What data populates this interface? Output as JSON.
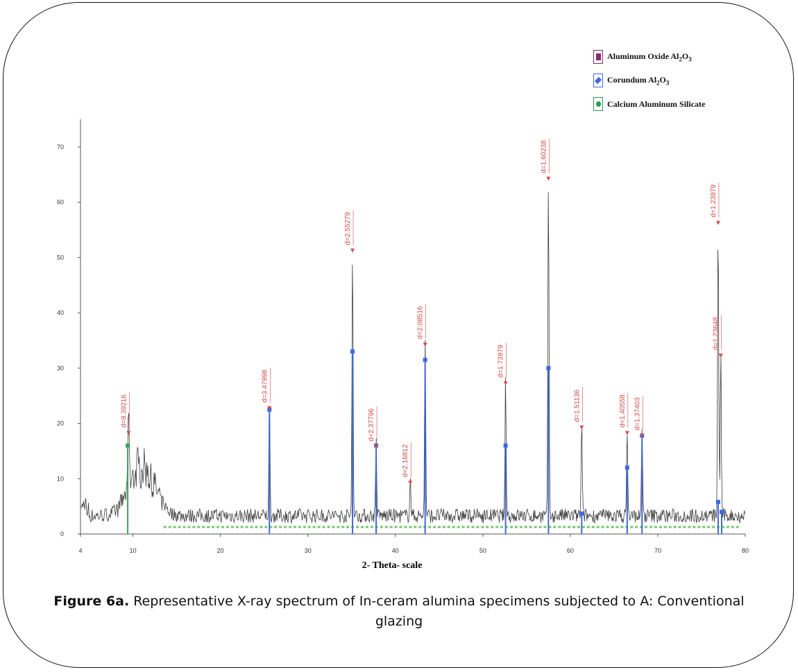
{
  "legend": [
    {
      "label": "Aluminum Oxide Al",
      "sub1": "2",
      "mid": "O",
      "sub2": "3",
      "marker": "square",
      "color": "#8b2a6b",
      "border": "#7a2a7a"
    },
    {
      "label": "Corundum Al",
      "sub1": "2",
      "mid": "O",
      "sub2": "3",
      "marker": "diamond",
      "color": "#3f68e0",
      "border": "#3f68e0"
    },
    {
      "label": "Calcium Aluminum Silicate",
      "sub1": "",
      "mid": "",
      "sub2": "",
      "marker": "circle",
      "color": "#2e9a5a",
      "border": "#2e9a5a"
    }
  ],
  "xlabel": "2- Theta- scale",
  "caption": {
    "bold": "Figure 6a.",
    "text": " Representative X-ray spectrum of In-ceram alumina specimens subjected to A: Conventional glazing"
  },
  "chart_data": {
    "type": "line",
    "xlim": [
      4,
      80
    ],
    "ylim": [
      0,
      72
    ],
    "xticks": [
      4,
      10,
      20,
      30,
      40,
      50,
      60,
      70,
      80
    ],
    "yticks": [
      0,
      10,
      20,
      30,
      40,
      50,
      60,
      70
    ],
    "peaks": [
      {
        "x": 9.5,
        "y": 18,
        "label": "d=9.39216"
      },
      {
        "x": 25.6,
        "y": 22.5,
        "label": "d=3.47998"
      },
      {
        "x": 35.1,
        "y": 51,
        "label": "d=2.55279"
      },
      {
        "x": 37.8,
        "y": 15.5,
        "label": "d=2.37796"
      },
      {
        "x": 41.7,
        "y": 9,
        "label": "d=2.16812"
      },
      {
        "x": 43.4,
        "y": 34,
        "label": "d=2.08516"
      },
      {
        "x": 52.6,
        "y": 27,
        "label": "d=1.73979"
      },
      {
        "x": 57.5,
        "y": 64,
        "label": "d=1.60238"
      },
      {
        "x": 61.3,
        "y": 19,
        "label": "d=1.51136"
      },
      {
        "x": 66.5,
        "y": 18,
        "label": "d=1.40558"
      },
      {
        "x": 68.2,
        "y": 17.5,
        "label": "d=1.37403"
      },
      {
        "x": 76.9,
        "y": 56,
        "label": "d=1.23979"
      },
      {
        "x": 77.2,
        "y": 32,
        "label": "d=1.23648"
      }
    ],
    "corundum_refs": [
      {
        "x": 25.6,
        "y": 22.5
      },
      {
        "x": 35.1,
        "y": 33
      },
      {
        "x": 37.8,
        "y": 16
      },
      {
        "x": 43.4,
        "y": 31.5
      },
      {
        "x": 52.6,
        "y": 16
      },
      {
        "x": 57.5,
        "y": 30
      },
      {
        "x": 61.3,
        "y": 3.7
      },
      {
        "x": 66.5,
        "y": 12
      },
      {
        "x": 68.2,
        "y": 17.8
      },
      {
        "x": 76.9,
        "y": 5.8
      },
      {
        "x": 77.3,
        "y": 4
      }
    ],
    "silicate_refs": [
      {
        "x": 9.4,
        "y": 16
      }
    ]
  }
}
